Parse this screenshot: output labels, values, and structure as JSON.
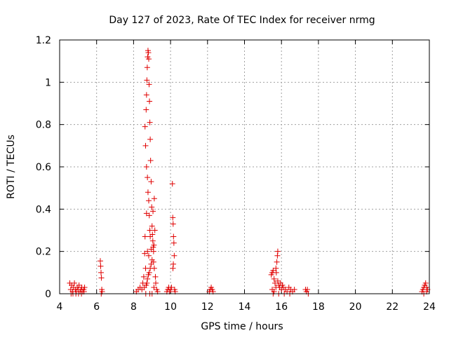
{
  "chart_data": {
    "type": "scatter",
    "title": "Day 127 of 2023, Rate Of TEC Index for receiver nrmg",
    "xlabel": "GPS time / hours",
    "ylabel": "ROTI / TECUs",
    "xlim": [
      4,
      24
    ],
    "ylim": [
      0,
      1.2
    ],
    "x_ticks": [
      "4",
      "6",
      "8",
      "10",
      "12",
      "14",
      "16",
      "18",
      "20",
      "22",
      "24"
    ],
    "y_ticks": [
      "0",
      "0.2",
      "0.4",
      "0.6",
      "0.8",
      "1",
      "1.2"
    ],
    "grid": true,
    "marker": "plus",
    "series_color": "#e00000",
    "series": [
      {
        "points": [
          [
            4.55,
            0.05
          ],
          [
            4.6,
            0.02
          ],
          [
            4.65,
            0.04
          ],
          [
            4.7,
            0.01
          ],
          [
            4.75,
            0.03
          ],
          [
            4.8,
            0.05
          ],
          [
            4.85,
            0.02
          ],
          [
            4.9,
            0.01
          ],
          [
            4.95,
            0.03
          ],
          [
            5.0,
            0.02
          ],
          [
            5.05,
            0.04
          ],
          [
            5.1,
            0.01
          ],
          [
            5.15,
            0.02
          ],
          [
            5.2,
            0.03
          ],
          [
            5.25,
            0.01
          ],
          [
            5.3,
            0.02
          ],
          [
            5.35,
            0.03
          ],
          [
            4.62,
            0.0
          ],
          [
            4.72,
            0.0
          ],
          [
            4.88,
            0.0
          ],
          [
            5.02,
            0.0
          ],
          [
            5.18,
            0.0
          ],
          [
            5.32,
            0.01
          ],
          [
            6.2,
            0.155
          ],
          [
            6.22,
            0.13
          ],
          [
            6.24,
            0.1
          ],
          [
            6.26,
            0.075
          ],
          [
            6.28,
            0.02
          ],
          [
            6.3,
            0.01
          ],
          [
            6.25,
            0.0
          ],
          [
            8.15,
            0.01
          ],
          [
            8.25,
            0.02
          ],
          [
            8.35,
            0.03
          ],
          [
            8.45,
            0.02
          ],
          [
            8.5,
            0.05
          ],
          [
            8.55,
            0.08
          ],
          [
            8.6,
            0.19
          ],
          [
            8.62,
            0.27
          ],
          [
            8.65,
            0.12
          ],
          [
            8.7,
            0.38
          ],
          [
            8.62,
            0.79
          ],
          [
            8.65,
            0.7
          ],
          [
            8.68,
            0.87
          ],
          [
            8.7,
            0.94
          ],
          [
            8.72,
            1.01
          ],
          [
            8.74,
            1.07
          ],
          [
            8.76,
            1.12
          ],
          [
            8.78,
            1.15
          ],
          [
            8.8,
            1.14
          ],
          [
            8.82,
            1.11
          ],
          [
            8.84,
            0.99
          ],
          [
            8.86,
            0.91
          ],
          [
            8.88,
            0.81
          ],
          [
            8.9,
            0.73
          ],
          [
            8.7,
            0.6
          ],
          [
            8.75,
            0.55
          ],
          [
            8.78,
            0.48
          ],
          [
            8.82,
            0.44
          ],
          [
            8.85,
            0.37
          ],
          [
            8.88,
            0.3
          ],
          [
            8.9,
            0.27
          ],
          [
            8.92,
            0.63
          ],
          [
            8.95,
            0.53
          ],
          [
            8.98,
            0.41
          ],
          [
            9.0,
            0.32
          ],
          [
            9.02,
            0.28
          ],
          [
            9.04,
            0.25
          ],
          [
            9.06,
            0.22
          ],
          [
            9.08,
            0.2
          ],
          [
            9.1,
            0.23
          ],
          [
            9.12,
            0.45
          ],
          [
            9.05,
            0.39
          ],
          [
            9.0,
            0.16
          ],
          [
            8.95,
            0.14
          ],
          [
            8.9,
            0.12
          ],
          [
            8.85,
            0.1
          ],
          [
            8.8,
            0.09
          ],
          [
            8.75,
            0.07
          ],
          [
            8.72,
            0.05
          ],
          [
            8.68,
            0.04
          ],
          [
            9.15,
            0.3
          ],
          [
            9.18,
            0.08
          ],
          [
            9.2,
            0.05
          ],
          [
            9.25,
            0.02
          ],
          [
            9.3,
            0.01
          ],
          [
            8.75,
            0.2
          ],
          [
            8.82,
            0.18
          ],
          [
            8.95,
            0.21
          ],
          [
            9.08,
            0.15
          ],
          [
            9.12,
            0.12
          ],
          [
            8.58,
            0.03
          ],
          [
            8.66,
            0.0
          ],
          [
            8.88,
            0.0
          ],
          [
            9.0,
            0.0
          ],
          [
            9.1,
            0.03
          ],
          [
            9.8,
            0.01
          ],
          [
            9.85,
            0.02
          ],
          [
            9.9,
            0.03
          ],
          [
            9.95,
            0.01
          ],
          [
            10.0,
            0.02
          ],
          [
            10.05,
            0.03
          ],
          [
            10.1,
            0.52
          ],
          [
            10.12,
            0.36
          ],
          [
            10.14,
            0.33
          ],
          [
            10.16,
            0.27
          ],
          [
            10.18,
            0.24
          ],
          [
            10.2,
            0.18
          ],
          [
            10.15,
            0.14
          ],
          [
            10.13,
            0.12
          ],
          [
            10.22,
            0.02
          ],
          [
            10.25,
            0.01
          ],
          [
            12.1,
            0.01
          ],
          [
            12.15,
            0.02
          ],
          [
            12.2,
            0.03
          ],
          [
            12.25,
            0.02
          ],
          [
            12.3,
            0.01
          ],
          [
            15.45,
            0.09
          ],
          [
            15.5,
            0.1
          ],
          [
            15.55,
            0.11
          ],
          [
            15.6,
            0.07
          ],
          [
            15.65,
            0.05
          ],
          [
            15.7,
            0.12
          ],
          [
            15.75,
            0.15
          ],
          [
            15.8,
            0.2
          ],
          [
            15.78,
            0.18
          ],
          [
            15.72,
            0.1
          ],
          [
            15.5,
            0.02
          ],
          [
            15.6,
            0.01
          ],
          [
            15.7,
            0.03
          ],
          [
            15.8,
            0.06
          ],
          [
            15.85,
            0.04
          ],
          [
            15.9,
            0.03
          ],
          [
            15.95,
            0.05
          ],
          [
            16.0,
            0.02
          ],
          [
            16.05,
            0.04
          ],
          [
            16.1,
            0.03
          ],
          [
            16.2,
            0.02
          ],
          [
            16.3,
            0.01
          ],
          [
            16.4,
            0.03
          ],
          [
            16.5,
            0.02
          ],
          [
            16.6,
            0.01
          ],
          [
            16.7,
            0.02
          ],
          [
            15.55,
            0.0
          ],
          [
            15.85,
            0.0
          ],
          [
            16.15,
            0.0
          ],
          [
            16.45,
            0.0
          ],
          [
            17.3,
            0.02
          ],
          [
            17.35,
            0.01
          ],
          [
            17.4,
            0.02
          ],
          [
            17.45,
            0.0
          ],
          [
            23.6,
            0.01
          ],
          [
            23.65,
            0.02
          ],
          [
            23.7,
            0.03
          ],
          [
            23.75,
            0.04
          ],
          [
            23.8,
            0.05
          ],
          [
            23.85,
            0.03
          ],
          [
            23.9,
            0.02
          ],
          [
            23.7,
            0.0
          ],
          [
            23.85,
            0.01
          ]
        ]
      }
    ]
  }
}
